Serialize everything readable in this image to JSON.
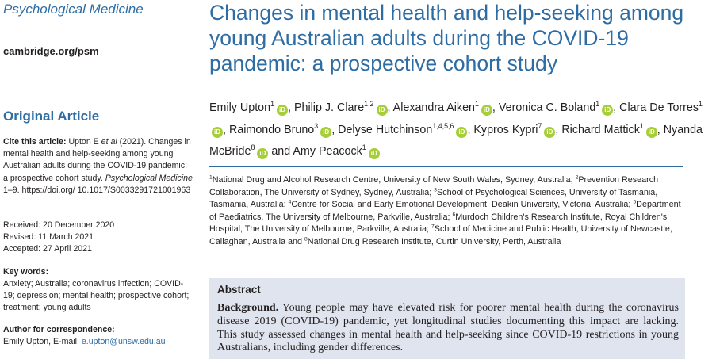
{
  "journal": "Psychological Medicine",
  "site": "cambridge.org/psm",
  "article_type": "Original Article",
  "cite": {
    "label": "Cite this article:",
    "authors_a": "Upton E ",
    "etal": "et al",
    "year_title": " (2021). Changes in mental health and help-seeking among young Australian adults during the COVID-19 pandemic: a prospective cohort study.",
    "journal": "Psychological Medicine",
    "pages_doi": " 1–9. https://doi.org/ 10.1017/S0033291721001963"
  },
  "dates": {
    "received": "Received: 20 December 2020",
    "revised": "Revised: 11 March 2021",
    "accepted": "Accepted: 27 April 2021"
  },
  "keywords": {
    "heading": "Key words:",
    "text": "Anxiety; Australia; coronavirus infection; COVID-19; depression; mental health; prospective cohort; treatment; young adults"
  },
  "correspondence": {
    "heading": "Author for correspondence:",
    "name": "Emily Upton, E-mail: ",
    "email": "e.upton@unsw.edu.au"
  },
  "title": "Changes in mental health and help-seeking among young Australian adults during the COVID-19 pandemic: a prospective cohort study",
  "authors": [
    {
      "name": "Emily Upton",
      "sup": "1",
      "sep": ", "
    },
    {
      "name": "Philip J. Clare",
      "sup": "1,2",
      "sep": ", "
    },
    {
      "name": "Alexandra Aiken",
      "sup": "1",
      "sep": ", "
    },
    {
      "name": "Veronica C. Boland",
      "sup": "1",
      "sep": ", "
    },
    {
      "name": "Clara De Torres",
      "sup": "1",
      "sep": ", "
    },
    {
      "name": "Raimondo Bruno",
      "sup": "3",
      "sep": ", "
    },
    {
      "name": "Delyse Hutchinson",
      "sup": "1,4,5,6",
      "sep": ", "
    },
    {
      "name": "Kypros Kypri",
      "sup": "7",
      "sep": ", "
    },
    {
      "name": "Richard Mattick",
      "sup": "1",
      "sep": ", "
    },
    {
      "name": "Nyanda McBride",
      "sup": "8",
      "sep": " and "
    },
    {
      "name": "Amy Peacock",
      "sup": "1",
      "sep": ""
    }
  ],
  "affiliations": [
    {
      "sup": "1",
      "text": "National Drug and Alcohol Research Centre, University of New South Wales, Sydney, Australia; "
    },
    {
      "sup": "2",
      "text": "Prevention Research Collaboration, The University of Sydney, Sydney, Australia; "
    },
    {
      "sup": "3",
      "text": "School of Psychological Sciences, University of Tasmania, Tasmania, Australia; "
    },
    {
      "sup": "4",
      "text": "Centre for Social and Early Emotional Development, Deakin University, Victoria, Australia; "
    },
    {
      "sup": "5",
      "text": "Department of Paediatrics, The University of Melbourne, Parkville, Australia; "
    },
    {
      "sup": "6",
      "text": "Murdoch Children's Research Institute, Royal Children's Hospital, The University of Melbourne, Parkville, Australia; "
    },
    {
      "sup": "7",
      "text": "School of Medicine and Public Health, University of Newcastle, Callaghan, Australia and "
    },
    {
      "sup": "8",
      "text": "National Drug Research Institute, Curtin University, Perth, Australia"
    }
  ],
  "abstract": {
    "heading": "Abstract",
    "background_label": "Background.",
    "background_text": " Young people may have elevated risk for poorer mental health during the coronavirus disease 2019 (COVID-19) pandemic, yet longitudinal studies documenting this impact are lacking. This study assessed changes in mental health and help-seeking since COVID-19 restrictions in young Australians, including gender differences."
  },
  "orcid_icon": "iD",
  "colors": {
    "accent": "#2e6da4",
    "orcid": "#a6ce39",
    "abstract_bg": "#dfe4ee"
  }
}
